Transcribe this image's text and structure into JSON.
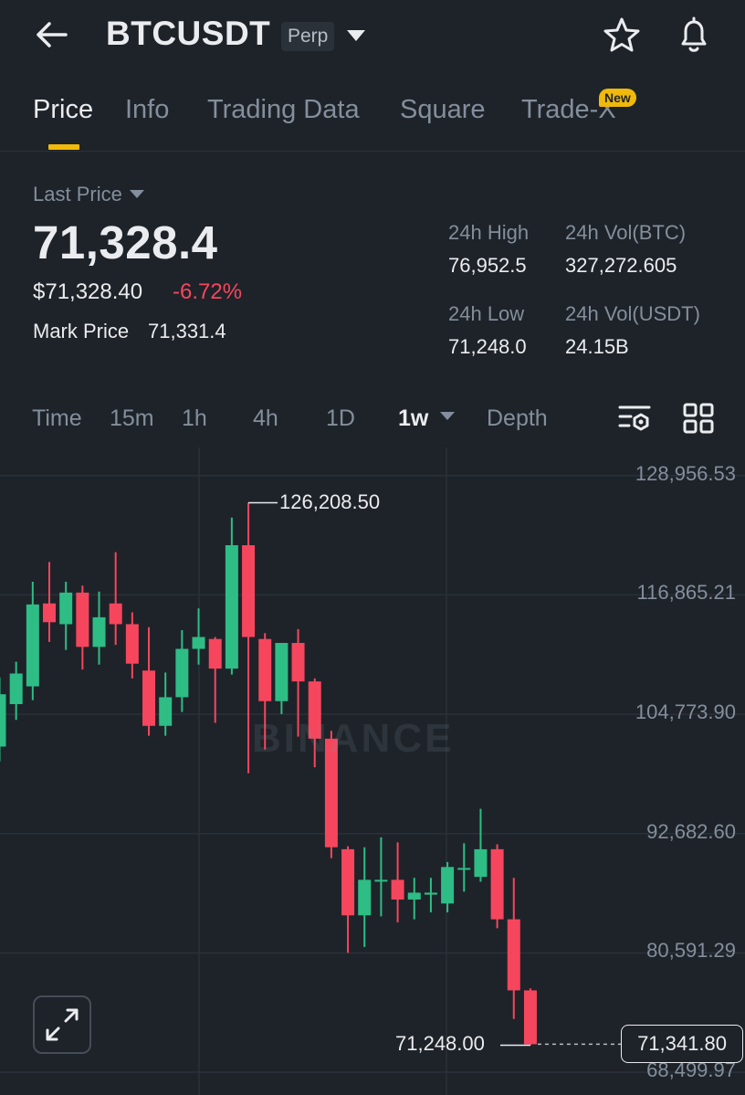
{
  "header": {
    "symbol": "BTCUSDT",
    "contract_tag": "Perp"
  },
  "tabs": [
    {
      "label": "Price",
      "active": true
    },
    {
      "label": "Info",
      "active": false
    },
    {
      "label": "Trading Data",
      "active": false
    },
    {
      "label": "Square",
      "active": false
    },
    {
      "label": "Trade-X",
      "active": false,
      "badge": "New"
    }
  ],
  "price": {
    "label": "Last Price",
    "last": "71,328.4",
    "usd": "$71,328.40",
    "change": "-6.72%",
    "mark_label": "Mark Price",
    "mark_value": "71,331.4"
  },
  "stats": {
    "high_label": "24h High",
    "high_value": "76,952.5",
    "low_label": "24h Low",
    "low_value": "71,248.0",
    "vol_btc_label": "24h Vol(BTC)",
    "vol_btc_value": "327,272.605",
    "vol_usdt_label": "24h Vol(USDT)",
    "vol_usdt_value": "24.15B"
  },
  "intervals": [
    {
      "label": "Time",
      "active": false
    },
    {
      "label": "15m",
      "active": false
    },
    {
      "label": "1h",
      "active": false
    },
    {
      "label": "4h",
      "active": false
    },
    {
      "label": "1D",
      "active": false
    },
    {
      "label": "1w",
      "active": true
    },
    {
      "label": "Depth",
      "active": false
    }
  ],
  "chart_data": {
    "type": "candlestick",
    "y_axis_labels": [
      "128,956.53",
      "116,865.21",
      "104,773.90",
      "92,682.60",
      "80,591.29",
      "68,499.97"
    ],
    "ylim": [
      66200,
      131800
    ],
    "high_marker": "126,208.50",
    "low_marker": "71,248.00",
    "current_price_tag": "71,341.80",
    "watermark": "BINANCE",
    "colors": {
      "up": "#2ebd85",
      "down": "#f6465d",
      "grid": "#2b3139"
    },
    "candles": [
      {
        "o": 101500,
        "h": 108500,
        "l": 100000,
        "c": 106800
      },
      {
        "o": 105800,
        "h": 110100,
        "l": 104200,
        "c": 108900
      },
      {
        "o": 107600,
        "h": 118200,
        "l": 106200,
        "c": 115900
      },
      {
        "o": 116000,
        "h": 120200,
        "l": 112100,
        "c": 114100
      },
      {
        "o": 113900,
        "h": 118200,
        "l": 111300,
        "c": 117100
      },
      {
        "o": 117100,
        "h": 117800,
        "l": 109300,
        "c": 111600
      },
      {
        "o": 111600,
        "h": 117200,
        "l": 109800,
        "c": 114600
      },
      {
        "o": 116000,
        "h": 121200,
        "l": 111800,
        "c": 113900
      },
      {
        "o": 113900,
        "h": 115100,
        "l": 108400,
        "c": 109900
      },
      {
        "o": 109200,
        "h": 113600,
        "l": 102600,
        "c": 103600
      },
      {
        "o": 103600,
        "h": 109000,
        "l": 102600,
        "c": 106500
      },
      {
        "o": 106500,
        "h": 113300,
        "l": 105000,
        "c": 111400
      },
      {
        "o": 111400,
        "h": 115500,
        "l": 109800,
        "c": 112600
      },
      {
        "o": 112400,
        "h": 112600,
        "l": 103900,
        "c": 109400
      },
      {
        "o": 109400,
        "h": 124700,
        "l": 108800,
        "c": 121900
      },
      {
        "o": 121900,
        "h": 126200,
        "l": 98800,
        "c": 112600
      },
      {
        "o": 112400,
        "h": 113000,
        "l": 101200,
        "c": 106100
      },
      {
        "o": 106100,
        "h": 111800,
        "l": 104800,
        "c": 112000
      },
      {
        "o": 112000,
        "h": 113400,
        "l": 102500,
        "c": 108100
      },
      {
        "o": 108100,
        "h": 108400,
        "l": 99400,
        "c": 102300
      },
      {
        "o": 102300,
        "h": 103100,
        "l": 90200,
        "c": 91300
      },
      {
        "o": 91100,
        "h": 91400,
        "l": 80600,
        "c": 84400
      },
      {
        "o": 84400,
        "h": 91300,
        "l": 81200,
        "c": 88000
      },
      {
        "o": 88000,
        "h": 92300,
        "l": 84300,
        "c": 88000
      },
      {
        "o": 88000,
        "h": 91800,
        "l": 83700,
        "c": 86000
      },
      {
        "o": 86000,
        "h": 88200,
        "l": 84000,
        "c": 86700
      },
      {
        "o": 86500,
        "h": 88200,
        "l": 84700,
        "c": 86700
      },
      {
        "o": 85600,
        "h": 89800,
        "l": 84700,
        "c": 89300
      },
      {
        "o": 89100,
        "h": 91700,
        "l": 86800,
        "c": 89200
      },
      {
        "o": 88300,
        "h": 95200,
        "l": 87800,
        "c": 91100
      },
      {
        "o": 91100,
        "h": 91600,
        "l": 83100,
        "c": 84000
      },
      {
        "o": 84000,
        "h": 88200,
        "l": 73900,
        "c": 76800
      },
      {
        "o": 76800,
        "h": 77000,
        "l": 71248,
        "c": 71341.8
      }
    ]
  }
}
